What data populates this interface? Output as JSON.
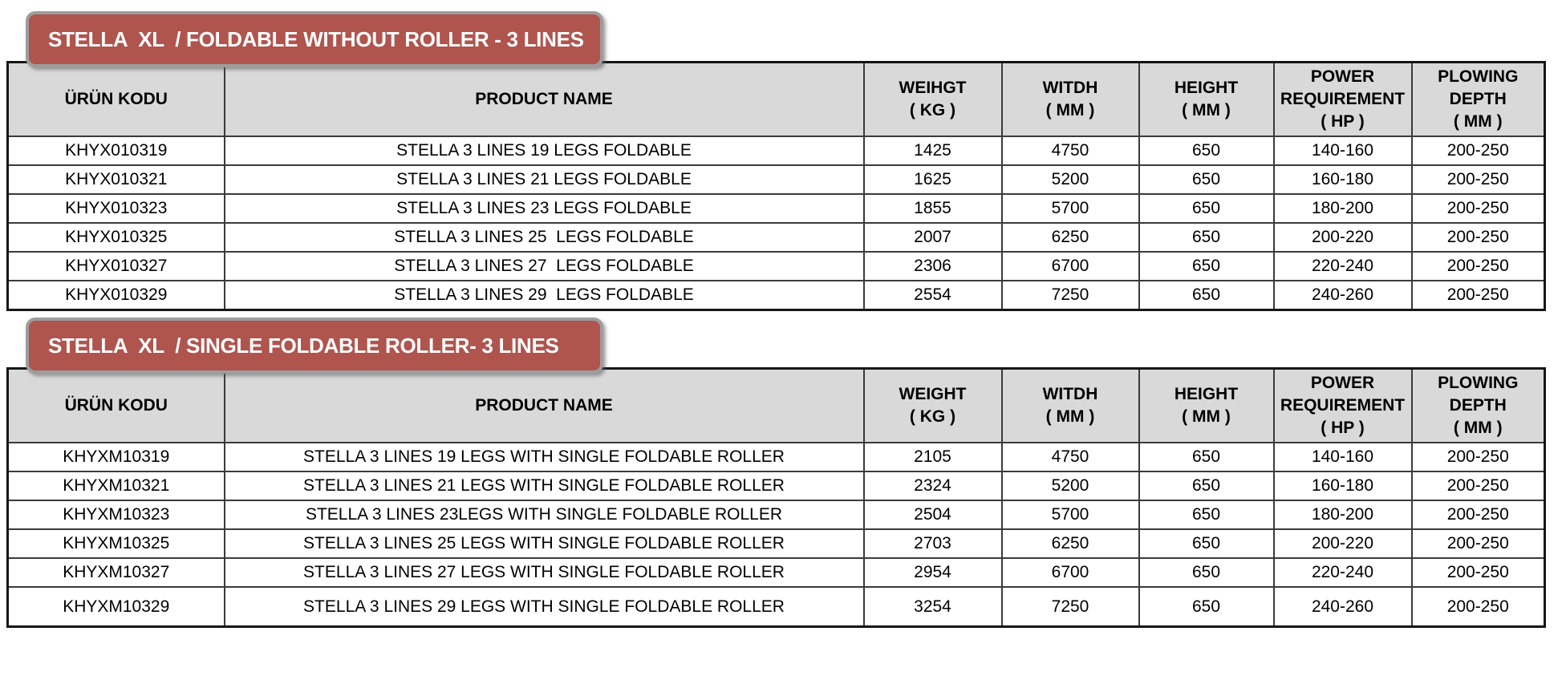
{
  "colors": {
    "banner_background": "#b0544e",
    "banner_border": "#9d9d9d",
    "banner_text": "#ffffff",
    "header_background": "#d9d9d9",
    "table_border": "#3b3b3b",
    "body_text": "#000000"
  },
  "sections": [
    {
      "banner_title": "STELLA  XL  / FOLDABLE WITHOUT ROLLER - 3 LINES",
      "table": {
        "columns": [
          {
            "label": "ÜRÜN KODU"
          },
          {
            "label": "PRODUCT NAME"
          },
          {
            "label": "WEIHGT\n( KG )"
          },
          {
            "label": "WITDH\n( MM )"
          },
          {
            "label": "HEIGHT\n( MM )"
          },
          {
            "label": "POWER\nREQUIREMENT\n( HP )"
          },
          {
            "label": "PLOWING\nDEPTH\n( MM )"
          }
        ],
        "rows": [
          [
            "KHYX010319",
            "STELLA 3 LINES 19 LEGS FOLDABLE",
            "1425",
            "4750",
            "650",
            "140-160",
            "200-250"
          ],
          [
            "KHYX010321",
            "STELLA 3 LINES 21 LEGS FOLDABLE",
            "1625",
            "5200",
            "650",
            "160-180",
            "200-250"
          ],
          [
            "KHYX010323",
            "STELLA 3 LINES 23 LEGS FOLDABLE",
            "1855",
            "5700",
            "650",
            "180-200",
            "200-250"
          ],
          [
            "KHYX010325",
            "STELLA 3 LINES 25  LEGS FOLDABLE",
            "2007",
            "6250",
            "650",
            "200-220",
            "200-250"
          ],
          [
            "KHYX010327",
            "STELLA 3 LINES 27  LEGS FOLDABLE",
            "2306",
            "6700",
            "650",
            "220-240",
            "200-250"
          ],
          [
            "KHYX010329",
            "STELLA 3 LINES 29  LEGS FOLDABLE",
            "2554",
            "7250",
            "650",
            "240-260",
            "200-250"
          ]
        ]
      }
    },
    {
      "banner_title": "STELLA  XL  / SINGLE FOLDABLE ROLLER- 3 LINES",
      "table": {
        "columns": [
          {
            "label": "ÜRÜN KODU"
          },
          {
            "label": "PRODUCT NAME"
          },
          {
            "label": "WEIGHT\n( KG )"
          },
          {
            "label": "WITDH\n( MM )"
          },
          {
            "label": "HEIGHT\n( MM )"
          },
          {
            "label": "POWER\nREQUIREMENT\n( HP )"
          },
          {
            "label": "PLOWING\nDEPTH\n( MM )"
          }
        ],
        "rows": [
          [
            "KHYXM10319",
            "STELLA 3 LINES 19 LEGS WITH SINGLE FOLDABLE ROLLER",
            "2105",
            "4750",
            "650",
            "140-160",
            "200-250"
          ],
          [
            "KHYXM10321",
            "STELLA 3 LINES 21 LEGS WITH SINGLE FOLDABLE ROLLER",
            "2324",
            "5200",
            "650",
            "160-180",
            "200-250"
          ],
          [
            "KHYXM10323",
            "STELLA 3 LINES 23LEGS WITH SINGLE FOLDABLE ROLLER",
            "2504",
            "5700",
            "650",
            "180-200",
            "200-250"
          ],
          [
            "KHYXM10325",
            "STELLA 3 LINES 25 LEGS WITH SINGLE FOLDABLE ROLLER",
            "2703",
            "6250",
            "650",
            "200-220",
            "200-250"
          ],
          [
            "KHYXM10327",
            "STELLA 3 LINES 27 LEGS WITH SINGLE FOLDABLE ROLLER",
            "2954",
            "6700",
            "650",
            "220-240",
            "200-250"
          ],
          [
            "KHYXM10329",
            "STELLA 3 LINES 29 LEGS WITH SINGLE FOLDABLE ROLLER",
            "3254",
            "7250",
            "650",
            "240-260",
            "200-250"
          ]
        ]
      }
    }
  ]
}
